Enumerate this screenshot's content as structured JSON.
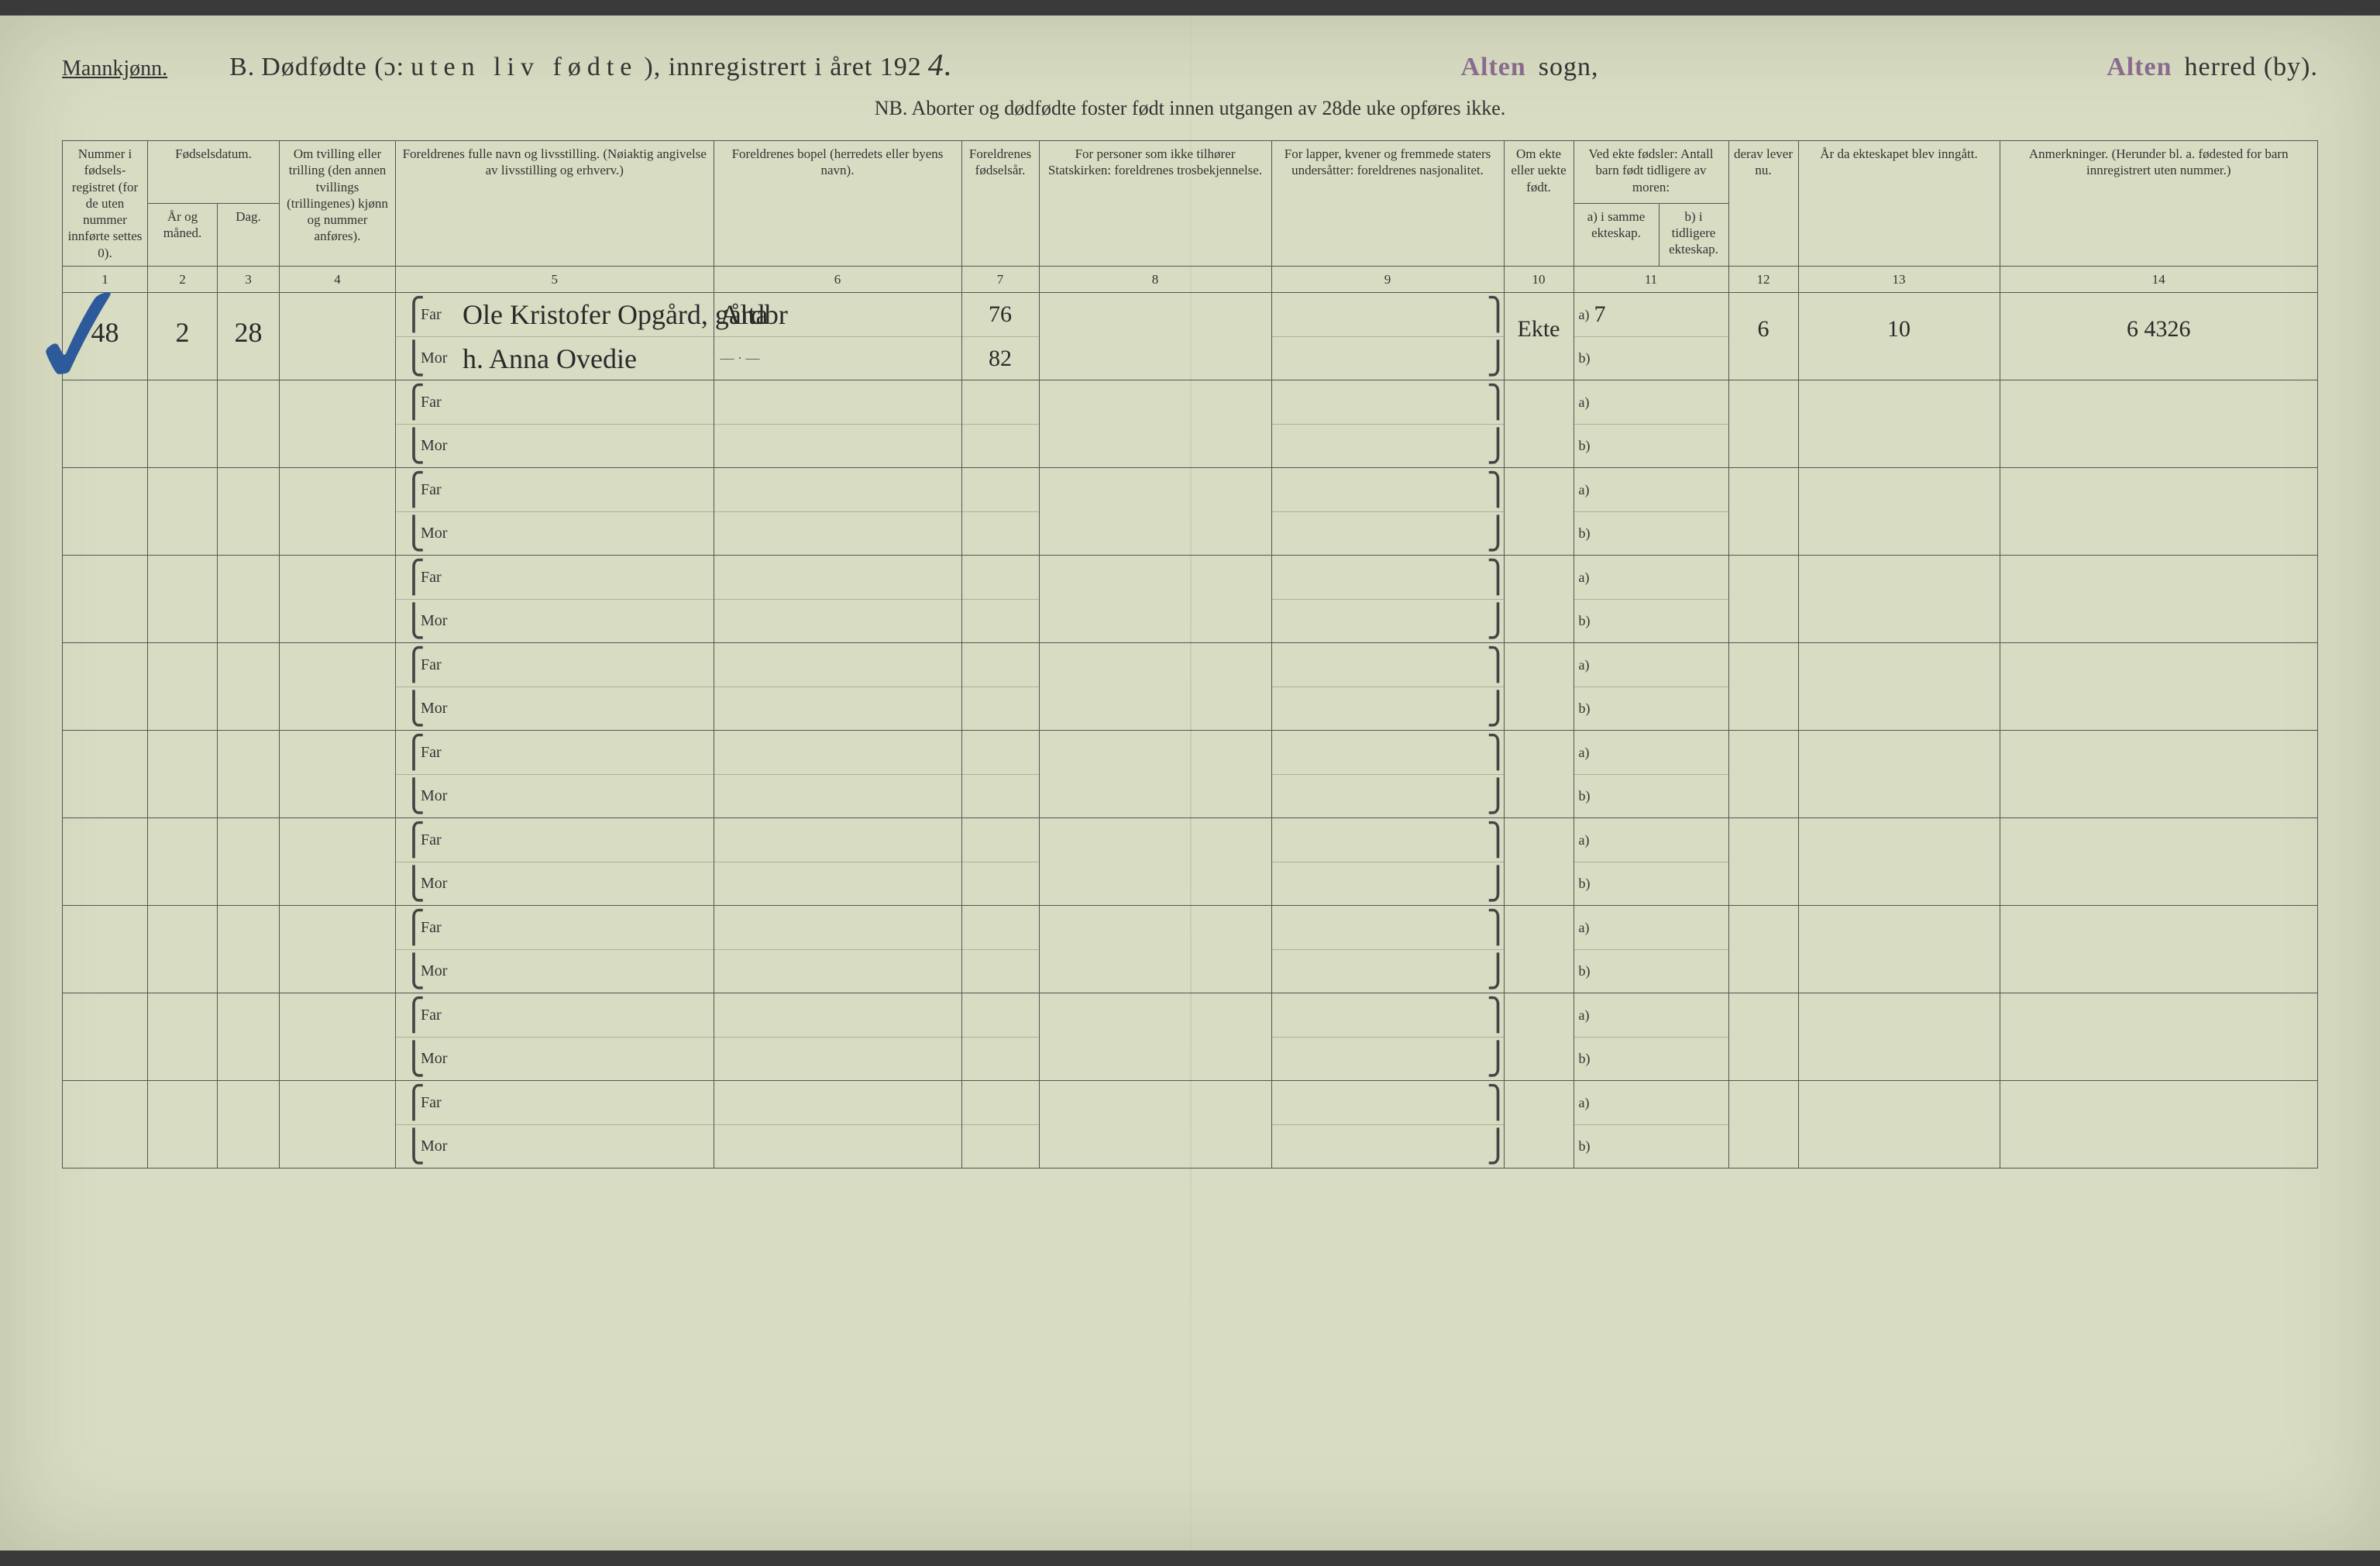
{
  "header": {
    "gender": "Mannkjønn.",
    "section_letter": "B.",
    "title_main": "Dødfødte (ɔ:",
    "title_spaced": "uten liv fødte",
    "title_tail": "), innregistrert i året 192",
    "year_suffix": "4.",
    "sogn_stamp": "Alten",
    "sogn_label": "sogn,",
    "herred_stamp": "Alten",
    "herred_label": "herred (by).",
    "subtitle": "NB. Aborter og dødfødte foster født innen utgangen av 28de uke opføres ikke."
  },
  "columns": {
    "c1": "Nummer i fødsels­registret (for de uten nummer innførte settes 0).",
    "c2_top": "Fødselsdatum.",
    "c2a": "År og måned.",
    "c2b": "Dag.",
    "c4": "Om tvilling eller trilling (den annen tvillings (trillingenes) kjønn og nummer anføres).",
    "c5": "Foreldrenes fulle navn og livsstilling.\n(Nøiaktig angivelse av livsstilling og erhverv.)",
    "c6": "Foreldrenes bopel\n(herredets eller byens navn).",
    "c7": "For­eldrenes fødsels­år.",
    "c8": "For personer som ikke tilhører Statskirken:\nforeldrenes trosbekjennelse.",
    "c9": "For lapper, kvener og fremmede staters undersåtter:\nforeldrenes nasjonalitet.",
    "c10": "Om ekte eller uekte født.",
    "c11_top": "Ved ekte fødsler:\nAntall barn født tid­ligere av moren:",
    "c11a": "a) i samme ekteskap.",
    "c11b": "b) i tidligere ekteskap.",
    "c12": "derav lever nu.",
    "c13": "År da ekte­skapet blev inn­gått.",
    "c14": "Anmerkninger.\n(Herunder bl. a. fødested for barn innregistrert uten nummer.)",
    "nums": [
      "1",
      "2",
      "3",
      "4",
      "5",
      "6",
      "7",
      "8",
      "9",
      "10",
      "11",
      "12",
      "13",
      "14"
    ]
  },
  "entry": {
    "number": "48",
    "year_month": "2",
    "day": "28",
    "far_label": "Far",
    "mor_label": "Mor",
    "far_name": "Ole Kristofer Opgård, gårdbr",
    "mor_name": "h. Anna Ovedie",
    "bopel_far": "Alta",
    "bopel_mor": "— · —",
    "far_year": "76",
    "mor_year": "82",
    "ekte": "Ekte",
    "a_val": "7",
    "lever": "6",
    "ekteskap_aar": "10",
    "anm": "6 4326"
  },
  "labels": {
    "a": "a)",
    "b": "b)"
  },
  "style": {
    "paper": "#d8dcc2",
    "ink": "#333333",
    "stamp": "#8a6b8f",
    "check": "#2d5a9a"
  }
}
